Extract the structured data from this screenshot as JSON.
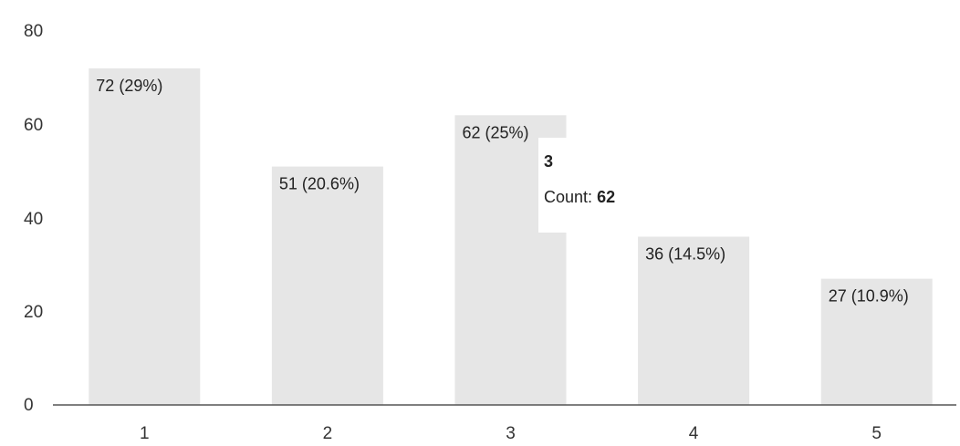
{
  "chart_data": {
    "type": "bar",
    "categories": [
      "1",
      "2",
      "3",
      "4",
      "5"
    ],
    "values": [
      72,
      51,
      62,
      36,
      27
    ],
    "data_labels": [
      "72 (29%)",
      "51 (20.6%)",
      "62 (25%)",
      "36 (14.5%)",
      "27 (10.9%)"
    ],
    "y_ticks": [
      "0",
      "20",
      "40",
      "60",
      "80"
    ],
    "ylim": [
      0,
      80
    ],
    "grid": false,
    "bar_color": "#e6e6e6",
    "axis_color": "#555555",
    "tooltip": {
      "category": "3",
      "label": "Count:",
      "value": "62"
    }
  }
}
